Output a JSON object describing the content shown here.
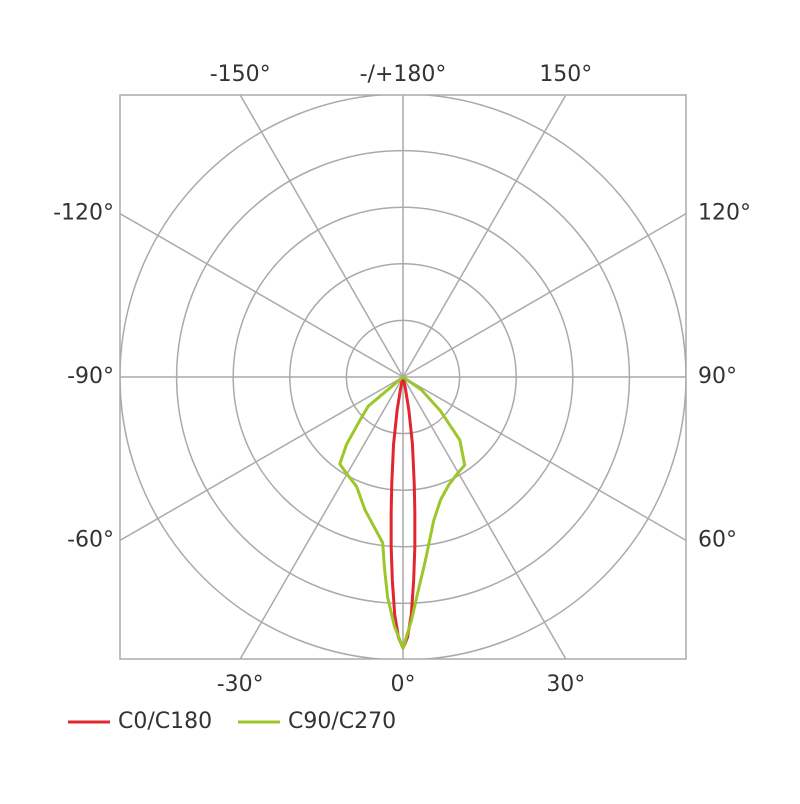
{
  "chart_data": {
    "type": "polar",
    "angle_zero": "bottom",
    "rlim": [
      0,
      5
    ],
    "rticks": [
      1,
      2,
      3,
      4,
      5
    ],
    "grid": true,
    "angleticks": [
      {
        "value": 0,
        "label": "0°"
      },
      {
        "value": 30,
        "label": "30°"
      },
      {
        "value": 60,
        "label": "60°"
      },
      {
        "value": 90,
        "label": "90°"
      },
      {
        "value": 120,
        "label": "120°"
      },
      {
        "value": 150,
        "label": "150°"
      },
      {
        "value": 180,
        "label": "-/+180°"
      },
      {
        "value": -150,
        "label": "-150°"
      },
      {
        "value": -120,
        "label": "-120°"
      },
      {
        "value": -90,
        "label": "-90°"
      },
      {
        "value": -60,
        "label": "-60°"
      },
      {
        "value": -30,
        "label": "-30°"
      }
    ],
    "legend": "bottom-left",
    "series": [
      {
        "name": "C0/C180",
        "color": "#e0262f",
        "x": [
          -20,
          -12,
          -10,
          -8,
          -6,
          -5,
          -4,
          -3,
          -2,
          -1,
          0,
          1,
          2,
          3,
          4,
          5,
          6,
          8,
          10,
          12,
          20
        ],
        "values": [
          0,
          0.2,
          0.6,
          1.2,
          1.9,
          2.4,
          3.0,
          3.6,
          4.2,
          4.6,
          4.79,
          4.6,
          4.2,
          3.6,
          3.0,
          2.4,
          1.9,
          1.2,
          0.6,
          0.2,
          0
        ]
      },
      {
        "name": "C90/C270",
        "color": "#9dc62a",
        "x": [
          -60,
          -50,
          -45,
          -40,
          -36,
          -30,
          -23,
          -16,
          -10,
          -7,
          -5.5,
          -4,
          -2,
          0,
          2,
          4,
          7,
          12,
          17,
          23,
          30,
          35,
          42,
          48,
          55,
          60
        ],
        "values": [
          0,
          0.8,
          1.07,
          1.55,
          1.9,
          1.98,
          2.1,
          2.44,
          2.75,
          2.95,
          3.4,
          3.9,
          4.4,
          4.79,
          4.3,
          3.8,
          3.26,
          2.6,
          2.27,
          2.07,
          1.95,
          1.9,
          1.5,
          0.88,
          0.4,
          0
        ]
      }
    ]
  }
}
